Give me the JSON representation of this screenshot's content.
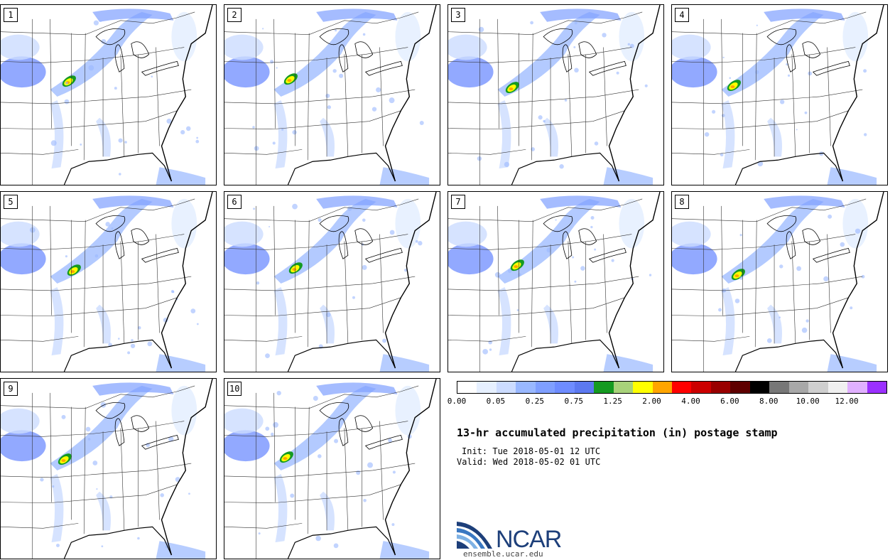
{
  "panels": [
    {
      "label": "1"
    },
    {
      "label": "2"
    },
    {
      "label": "3"
    },
    {
      "label": "4"
    },
    {
      "label": "5"
    },
    {
      "label": "6"
    },
    {
      "label": "7"
    },
    {
      "label": "8"
    },
    {
      "label": "9"
    },
    {
      "label": "10"
    }
  ],
  "colorbar": {
    "colors": [
      "#ffffff",
      "#e6f0ff",
      "#ccdcff",
      "#99b8ff",
      "#7f9fff",
      "#6e8cff",
      "#5c79f0",
      "#159a21",
      "#a8d27a",
      "#ffff00",
      "#ffa500",
      "#ff0000",
      "#cc0000",
      "#990000",
      "#5e0000",
      "#000000",
      "#777777",
      "#a8a8a8",
      "#cfcfcf",
      "#f0f0f0",
      "#e0b0ff",
      "#9b30ff"
    ],
    "tick_labels": [
      "0.00",
      "0.05",
      "0.25",
      "0.75",
      "1.25",
      "2.00",
      "4.00",
      "6.00",
      "8.00",
      "10.00",
      "12.00"
    ]
  },
  "title": "13-hr accumulated precipitation (in) postage stamp",
  "init": "Init: Tue 2018-05-01 12 UTC",
  "valid": "Valid: Wed 2018-05-02 01 UTC",
  "logo": {
    "text": "NCAR",
    "website": "ensemble.ucar.edu",
    "color": "#1d3f7a"
  }
}
